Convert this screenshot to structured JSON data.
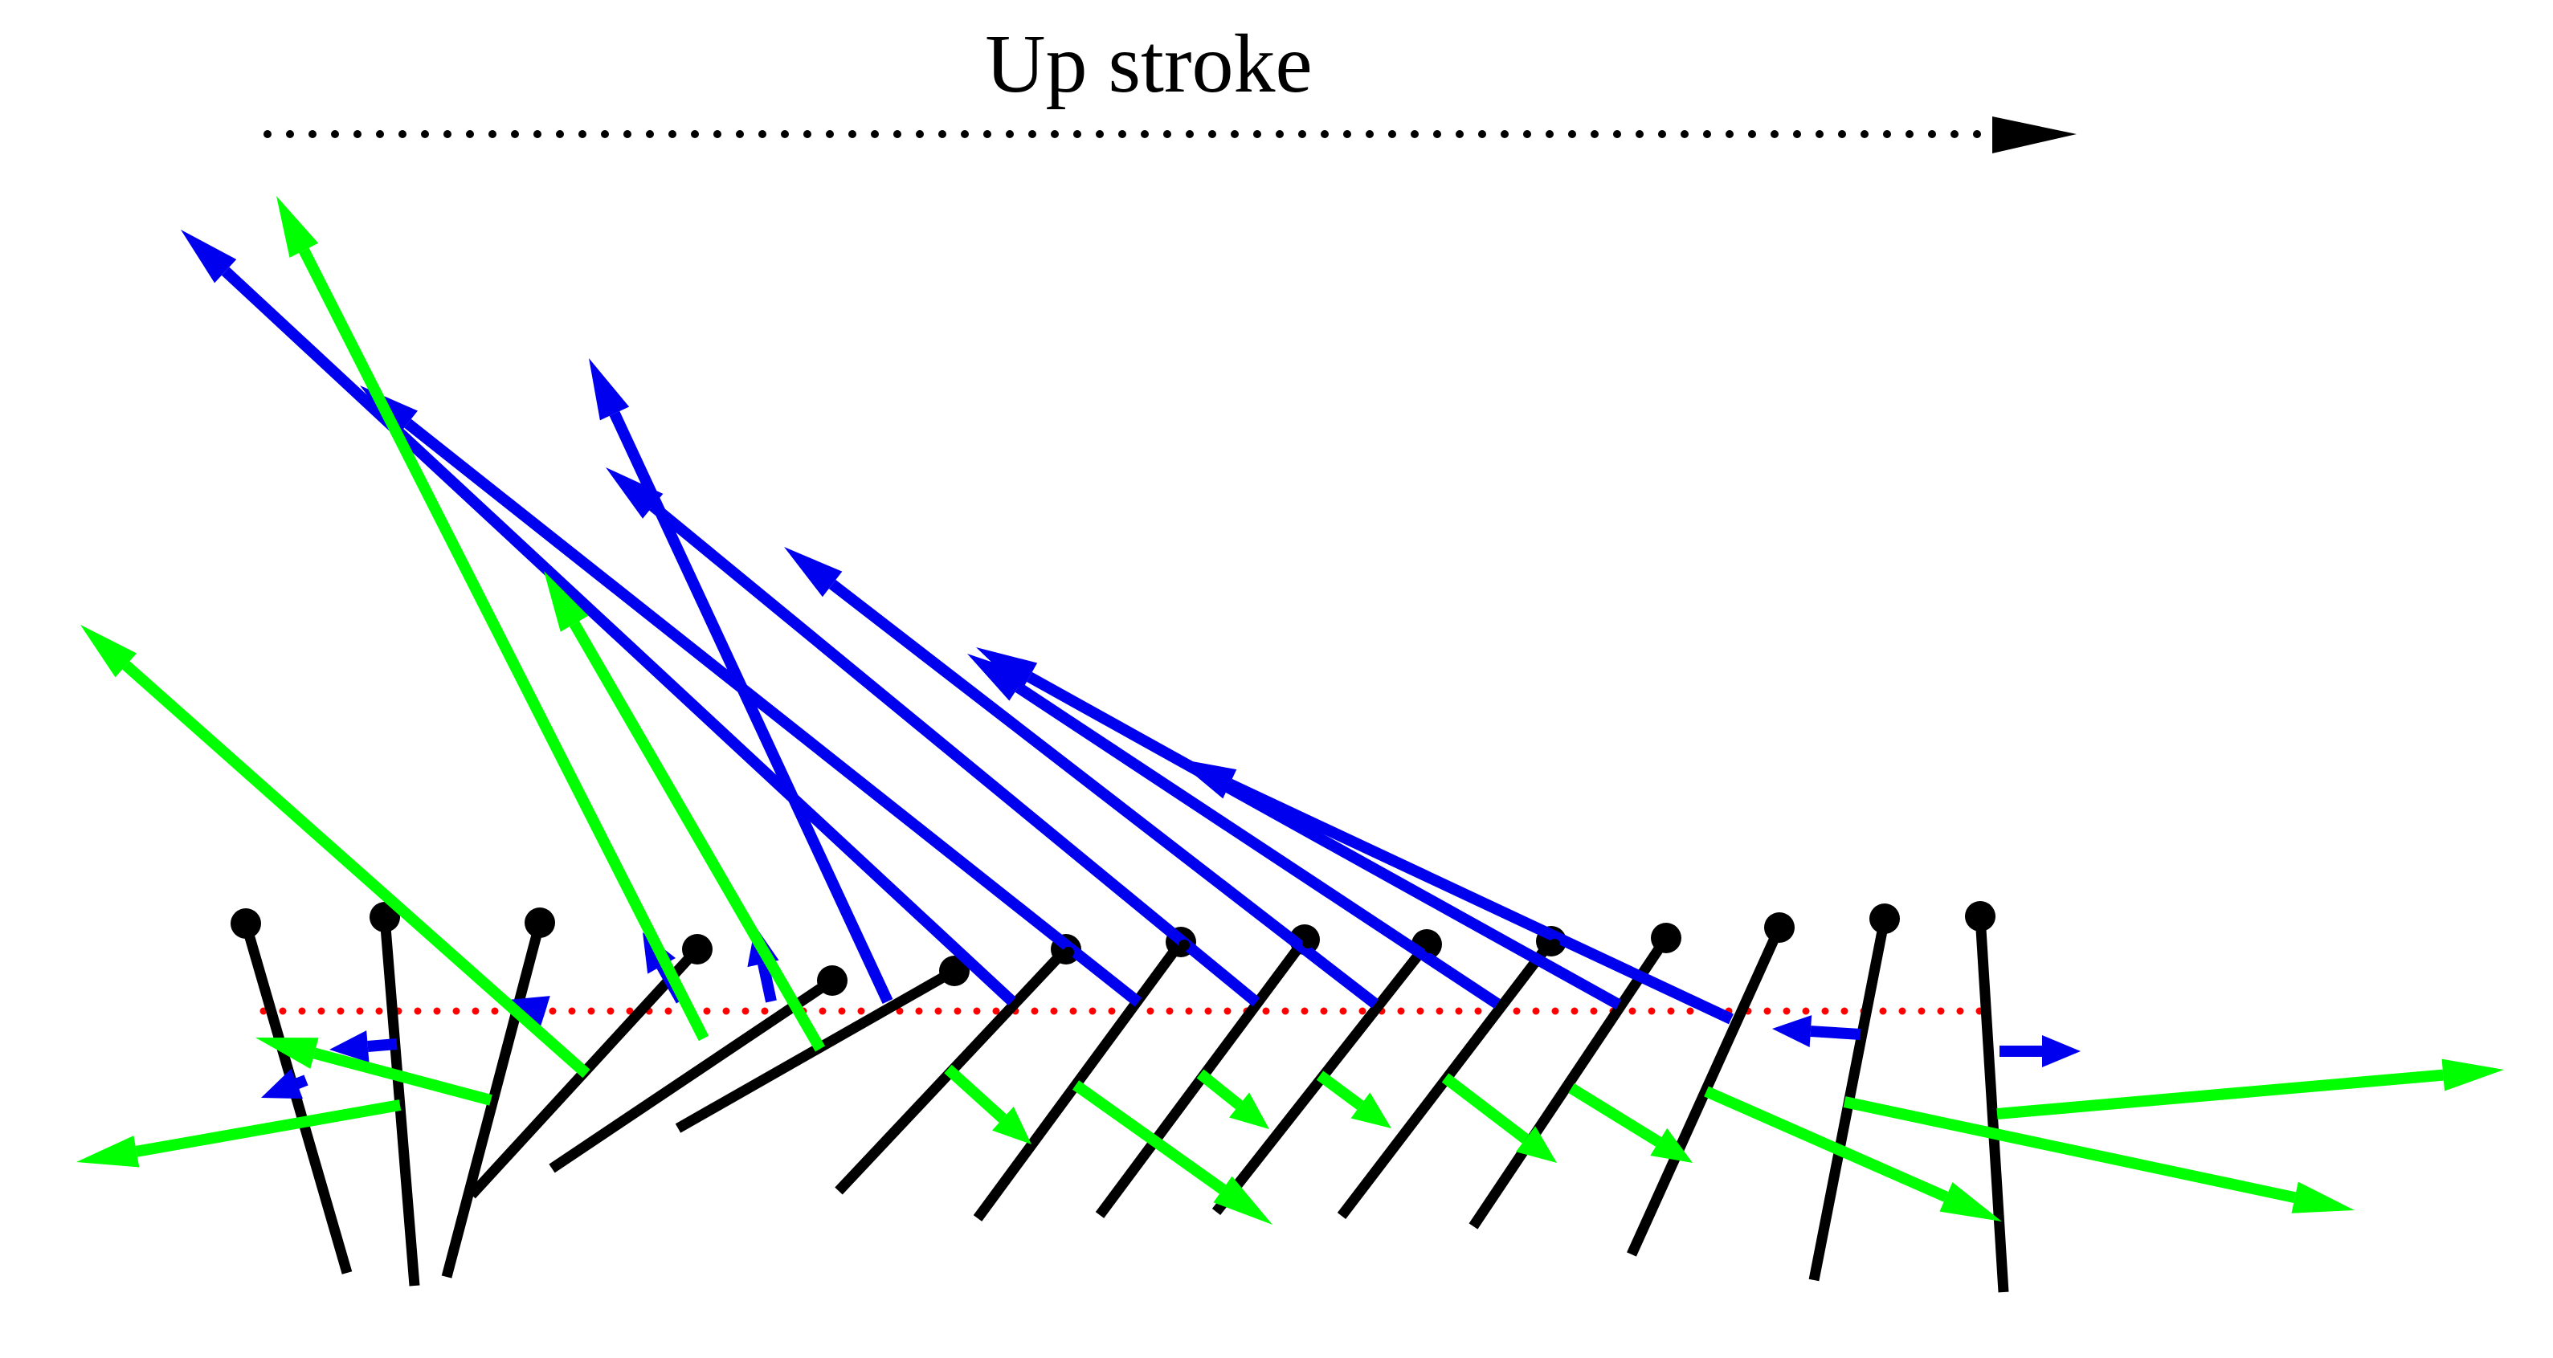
{
  "title": "Up stroke",
  "colors": {
    "background": "#ffffff",
    "wing": "#000000",
    "blue_vector": "#0000ee",
    "green_vector": "#00ff00",
    "stroke_direction": "#000000",
    "stroke_plane": "#ff0000"
  },
  "legend_items": [
    {
      "name": "stroke-direction-arrow",
      "color": "#000000",
      "style": "dotted"
    },
    {
      "name": "stroke-plane-line",
      "color": "#ff0000",
      "style": "dotted"
    },
    {
      "name": "blue-force-vector",
      "color": "#0000ee",
      "style": "solid"
    },
    {
      "name": "green-force-vector",
      "color": "#00ff00",
      "style": "solid"
    }
  ],
  "frame_count": 15
}
